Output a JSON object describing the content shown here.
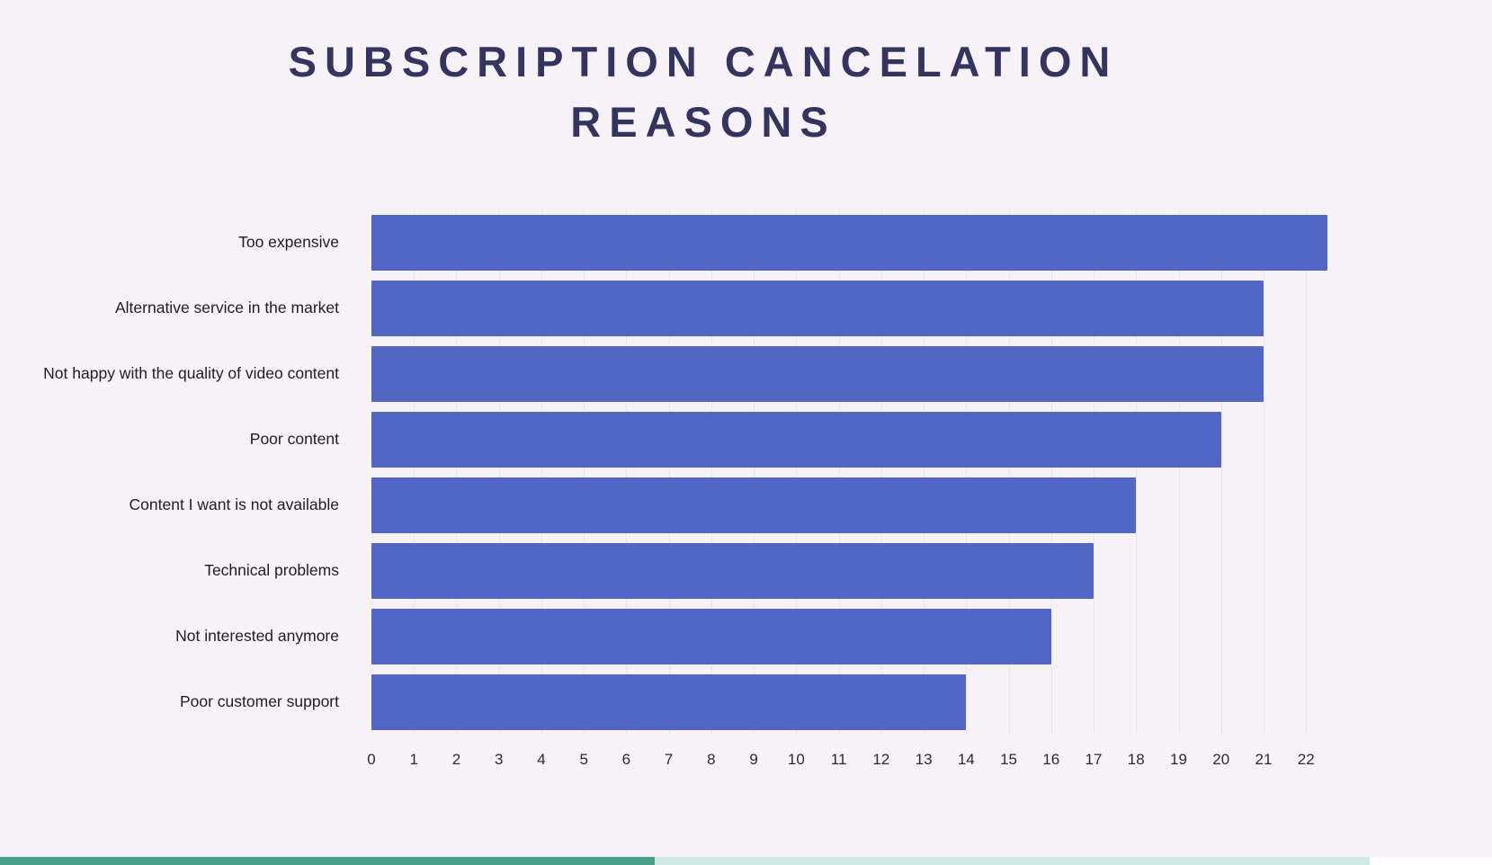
{
  "title": {
    "line1": "SUBSCRIPTION CANCELATION",
    "line2": "REASONS"
  },
  "chart_data": {
    "type": "bar",
    "orientation": "horizontal",
    "title": "SUBSCRIPTION CANCELATION REASONS",
    "categories": [
      "Too expensive",
      "Alternative service in the market",
      "Not happy with the quality of video content",
      "Poor content",
      "Content I want is  not available",
      "Technical problems",
      "Not interested anymore",
      "Poor customer support"
    ],
    "values": [
      22.5,
      21,
      21,
      20,
      18,
      17,
      16,
      14
    ],
    "xlabel": "",
    "ylabel": "",
    "xlim": [
      0,
      22.8
    ],
    "x_ticks": [
      0,
      1,
      2,
      3,
      4,
      5,
      6,
      7,
      8,
      9,
      10,
      11,
      12,
      13,
      14,
      15,
      16,
      17,
      18,
      19,
      20,
      21,
      22
    ],
    "grid": true,
    "legend": false,
    "bar_color": "#5266c4",
    "background_color": "#f6f2f8",
    "title_color": "#34355e"
  },
  "footer": {
    "left_segment_color": "#4aa189",
    "left_segment_width_pct": 43.9,
    "right_segment_color": "#cfeae3",
    "right_segment_width_pct": 47.9
  }
}
